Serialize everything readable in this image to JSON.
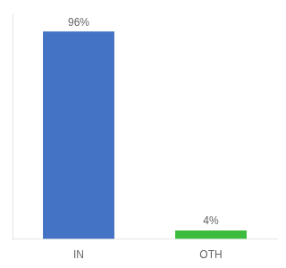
{
  "chart_data": {
    "type": "bar",
    "categories": [
      "IN",
      "OTH"
    ],
    "values": [
      96,
      4
    ],
    "value_labels": [
      "96%",
      "4%"
    ],
    "colors": [
      "#4472c4",
      "#3dbb3d"
    ],
    "ylim": [
      0,
      104
    ],
    "data_labels": true,
    "grid": false,
    "tick_labels": "x"
  }
}
